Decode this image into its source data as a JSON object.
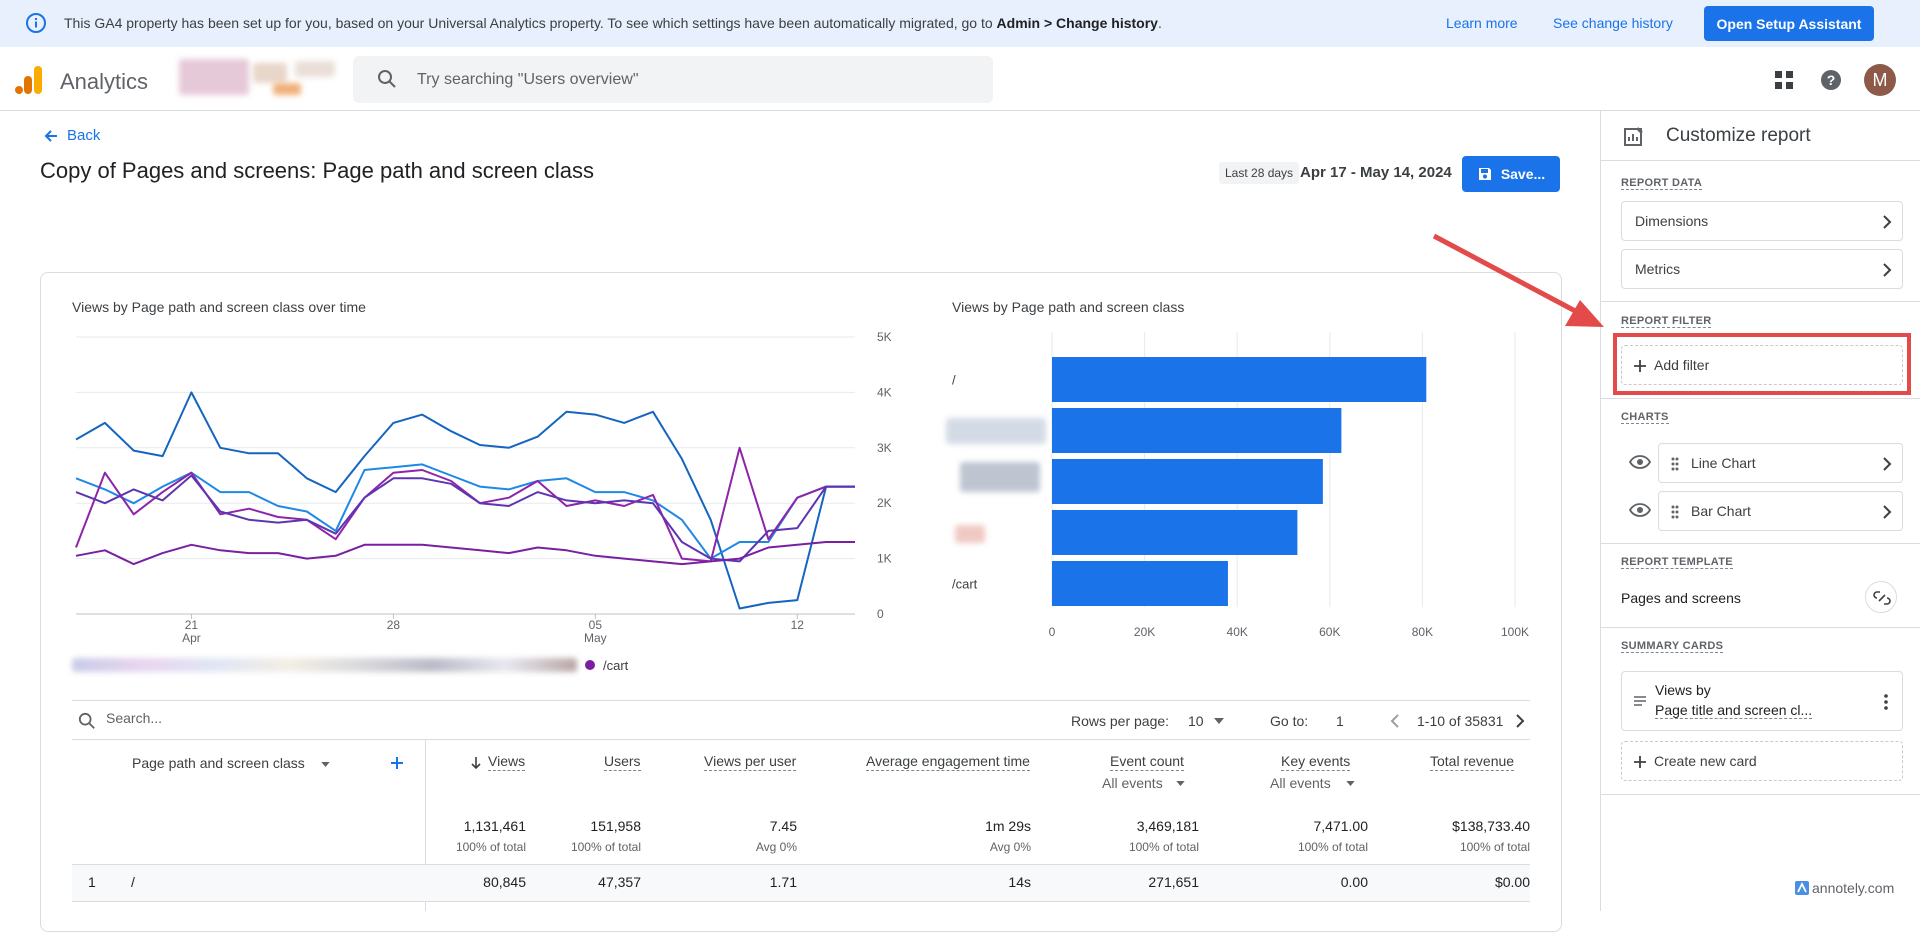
{
  "banner": {
    "message_prefix": "This GA4 property has been set up for you, based on your Universal Analytics property. To see which settings have been automatically migrated, go to ",
    "message_bold": "Admin > Change history",
    "message_suffix": ".",
    "learn_more": "Learn more",
    "see_change_history": "See change history",
    "setup_button": "Open Setup Assistant"
  },
  "header": {
    "app_name": "Analytics",
    "search_placeholder": "Try searching \"Users overview\"",
    "avatar_initial": "M"
  },
  "page": {
    "back_label": "Back",
    "title": "Copy of Pages and screens: Page path and screen class",
    "date_chip": "Last 28 days",
    "date_range": "Apr 17 - May 14, 2024",
    "save_label": "Save..."
  },
  "line_chart": {
    "title": "Views by Page path and screen class over time",
    "y_ticks": [
      "5K",
      "4K",
      "3K",
      "2K",
      "1K",
      "0"
    ],
    "x_ticks": [
      {
        "day": "21",
        "month": "Apr"
      },
      {
        "day": "28",
        "month": ""
      },
      {
        "day": "05",
        "month": "May"
      },
      {
        "day": "12",
        "month": ""
      }
    ],
    "legend_label": "/cart"
  },
  "bar_chart": {
    "title": "Views by Page path and screen class",
    "row_labels": [
      "/",
      "",
      "",
      "",
      "/cart"
    ],
    "x_ticks": [
      "0",
      "20K",
      "40K",
      "60K",
      "80K",
      "100K"
    ]
  },
  "chart_data": [
    {
      "type": "line",
      "title": "Views by Page path and screen class over time",
      "x": [
        "Apr 17",
        "Apr 18",
        "Apr 19",
        "Apr 20",
        "Apr 21",
        "Apr 22",
        "Apr 23",
        "Apr 24",
        "Apr 25",
        "Apr 26",
        "Apr 27",
        "Apr 28",
        "Apr 29",
        "Apr 30",
        "May 01",
        "May 02",
        "May 03",
        "May 04",
        "May 05",
        "May 06",
        "May 07",
        "May 08",
        "May 09",
        "May 10",
        "May 11",
        "May 12",
        "May 13",
        "May 14"
      ],
      "ylim": [
        0,
        5000
      ],
      "series": [
        {
          "color": "#1565c0",
          "values": [
            3150,
            3450,
            2950,
            2850,
            4000,
            3000,
            2900,
            2900,
            2450,
            2200,
            2850,
            3450,
            3600,
            3300,
            3050,
            3000,
            3200,
            3650,
            3600,
            3450,
            3650,
            2800,
            1700,
            100,
            200,
            250,
            2300,
            2300
          ]
        },
        {
          "color": "#1e88e5",
          "values": [
            2450,
            2250,
            2000,
            2300,
            2550,
            2200,
            2200,
            1950,
            1850,
            1500,
            2600,
            2650,
            2700,
            2500,
            2300,
            2250,
            2400,
            2450,
            2200,
            2200,
            2050,
            1700,
            1000,
            1300,
            1300,
            2100,
            2300,
            2300
          ]
        },
        {
          "color": "#8e24aa",
          "values": [
            1200,
            2550,
            1800,
            2200,
            2550,
            1800,
            1900,
            1750,
            1700,
            1350,
            2100,
            2550,
            2600,
            2400,
            2000,
            2100,
            2400,
            1950,
            2050,
            1950,
            2150,
            1000,
            950,
            3000,
            1350,
            2100,
            2300,
            2300
          ]
        },
        {
          "color": "#5e35b1",
          "values": [
            2200,
            2000,
            2250,
            2050,
            2500,
            1850,
            1700,
            1650,
            1700,
            1450,
            2100,
            2450,
            2450,
            2350,
            2000,
            1950,
            2200,
            2050,
            2000,
            2050,
            2000,
            1300,
            1000,
            950,
            1500,
            1550,
            2300,
            2300
          ]
        },
        {
          "name": "/cart",
          "color": "#7b1fa2",
          "values": [
            1050,
            1150,
            900,
            1100,
            1250,
            1150,
            1100,
            1100,
            1000,
            1050,
            1250,
            1250,
            1250,
            1200,
            1150,
            1100,
            1200,
            1150,
            1050,
            1000,
            950,
            900,
            950,
            1000,
            1200,
            1250,
            1300,
            1300
          ]
        }
      ]
    },
    {
      "type": "bar",
      "title": "Views by Page path and screen class",
      "categories": [
        "/",
        "",
        "",
        "",
        "/cart"
      ],
      "values": [
        80845,
        62500,
        58500,
        53000,
        38000
      ],
      "xlim": [
        0,
        100000
      ]
    }
  ],
  "table": {
    "search_placeholder": "Search...",
    "rows_per_page_label": "Rows per page:",
    "rows_per_page": "10",
    "goto_label": "Go to:",
    "goto_value": "1",
    "page_range": "1-10 of 35831",
    "dim_header": "Page path and screen class",
    "headers": [
      "Views",
      "Users",
      "Views per user",
      "Average engagement time",
      "Event count",
      "Key events",
      "Total revenue"
    ],
    "event_sub": "All events",
    "key_sub": "All events",
    "totals": [
      "1,131,461",
      "151,958",
      "7.45",
      "1m 29s",
      "3,469,181",
      "7,471.00",
      "$138,733.40"
    ],
    "totals_sub": [
      "100% of total",
      "100% of total",
      "Avg 0%",
      "Avg 0%",
      "100% of total",
      "100% of total",
      "100% of total"
    ],
    "row": {
      "index": "1",
      "path": "/",
      "values": [
        "80,845",
        "47,357",
        "1.71",
        "14s",
        "271,651",
        "0.00",
        "$0.00"
      ]
    }
  },
  "panel": {
    "title": "Customize report",
    "report_data": "REPORT DATA",
    "dimensions": "Dimensions",
    "metrics": "Metrics",
    "report_filter": "REPORT FILTER",
    "add_filter": "Add filter",
    "charts": "CHARTS",
    "line_chart": "Line Chart",
    "bar_chart": "Bar Chart",
    "report_template": "REPORT TEMPLATE",
    "template_name": "Pages and screens",
    "summary_cards": "SUMMARY CARDS",
    "card_line1": "Views by",
    "card_line2": "Page title and screen cl...",
    "create_card": "Create new card"
  },
  "watermark": "annotely.com",
  "colors": {
    "accent": "#1a73e8",
    "bar": "#1a73e8",
    "highlight": "#e34a4a"
  }
}
